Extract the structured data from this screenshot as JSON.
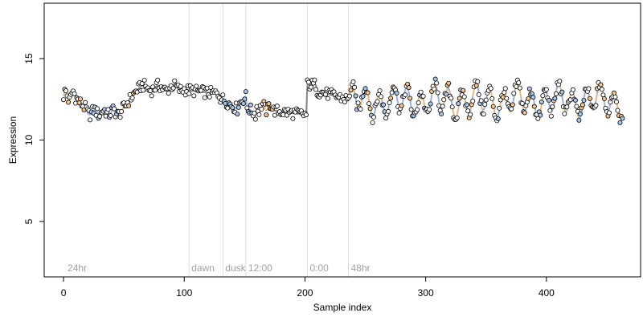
{
  "chart_data": {
    "type": "scatter",
    "title": "",
    "xlabel": "Sample index",
    "ylabel": "Expression",
    "xlim": [
      -16,
      478
    ],
    "ylim": [
      1.6,
      18.4
    ],
    "x_ticks": [
      0,
      100,
      200,
      300,
      400
    ],
    "y_ticks": [
      5,
      10,
      15
    ],
    "grid": false,
    "legend": "none",
    "colors": {
      "frame": "#000000",
      "vline": "#dddddd",
      "vline_label": "#a0a0a0",
      "trend_orange": "#e8b878",
      "trend_blue": "#9ab0d8",
      "trend_gray": "#888888",
      "point_stroke": "#000000",
      "point_fill_default": "#ffffff",
      "point_fill_orange": "#f5c58f",
      "point_fill_blue": "#a8c4ec"
    },
    "vlines": [
      {
        "x": 104,
        "label": "dawn"
      },
      {
        "x": 132,
        "label": "dusk"
      },
      {
        "x": 151,
        "label": "12:00"
      },
      {
        "x": 202,
        "label": "0:00"
      },
      {
        "x": 236,
        "label": "48hr"
      }
    ],
    "corner_label": {
      "x": 2,
      "label": "24hr"
    },
    "segments": [
      {
        "x0": 0,
        "x1": 20,
        "kind": "orange"
      },
      {
        "x0": 20,
        "x1": 48,
        "kind": "blue"
      },
      {
        "x0": 48,
        "x1": 60,
        "kind": "orange"
      },
      {
        "x0": 60,
        "x1": 132,
        "kind": "gray"
      },
      {
        "x0": 132,
        "x1": 160,
        "kind": "blue"
      },
      {
        "x0": 160,
        "x1": 175,
        "kind": "orange"
      },
      {
        "x0": 175,
        "x1": 202,
        "kind": "gray"
      },
      {
        "x0": 202,
        "x1": 236,
        "kind": "gray"
      },
      {
        "x0": 236,
        "x1": 465,
        "kind": "mixed"
      }
    ]
  }
}
